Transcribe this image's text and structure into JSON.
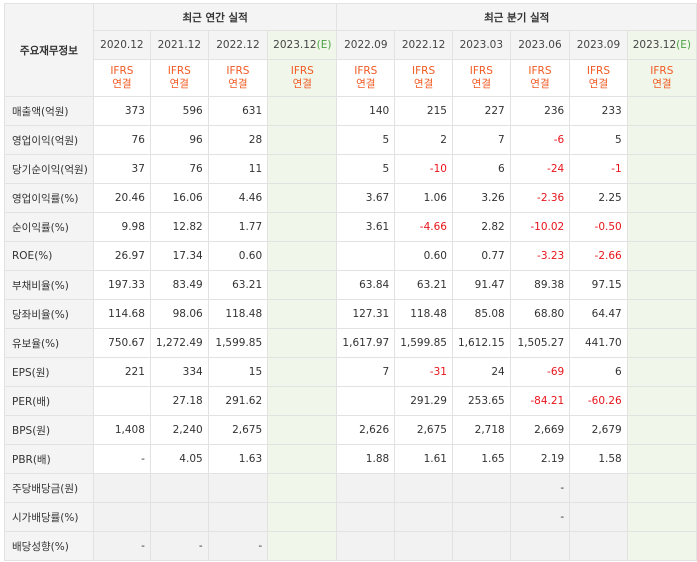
{
  "table": {
    "row_header_label": "주요재무정보",
    "groups": {
      "annual": "최근 연간 실적",
      "quarterly": "최근 분기 실적"
    },
    "periods": [
      "2020.12",
      "2021.12",
      "2022.12",
      "2023.12(E)",
      "2022.09",
      "2022.12",
      "2023.03",
      "2023.06",
      "2023.09",
      "2023.12(E)"
    ],
    "standard_line1": "IFRS",
    "standard_line2": "연결",
    "rows": [
      {
        "label": "매출액(억원)",
        "values": [
          "373",
          "596",
          "631",
          "",
          "140",
          "215",
          "227",
          "236",
          "233",
          ""
        ]
      },
      {
        "label": "영업이익(억원)",
        "values": [
          "76",
          "96",
          "28",
          "",
          "5",
          "2",
          "7",
          "-6",
          "5",
          ""
        ]
      },
      {
        "label": "당기순이익(억원)",
        "values": [
          "37",
          "76",
          "11",
          "",
          "5",
          "-10",
          "6",
          "-24",
          "-1",
          ""
        ]
      },
      {
        "label": "영업이익률(%)",
        "values": [
          "20.46",
          "16.06",
          "4.46",
          "",
          "3.67",
          "1.06",
          "3.26",
          "-2.36",
          "2.25",
          ""
        ]
      },
      {
        "label": "순이익률(%)",
        "values": [
          "9.98",
          "12.82",
          "1.77",
          "",
          "3.61",
          "-4.66",
          "2.82",
          "-10.02",
          "-0.50",
          ""
        ]
      },
      {
        "label": "ROE(%)",
        "values": [
          "26.97",
          "17.34",
          "0.60",
          "",
          "",
          "0.60",
          "0.77",
          "-3.23",
          "-2.66",
          ""
        ]
      },
      {
        "label": "부채비율(%)",
        "values": [
          "197.33",
          "83.49",
          "63.21",
          "",
          "63.84",
          "63.21",
          "91.47",
          "89.38",
          "97.15",
          ""
        ]
      },
      {
        "label": "당좌비율(%)",
        "values": [
          "114.68",
          "98.06",
          "118.48",
          "",
          "127.31",
          "118.48",
          "85.08",
          "68.80",
          "64.47",
          ""
        ]
      },
      {
        "label": "유보율(%)",
        "values": [
          "750.67",
          "1,272.49",
          "1,599.85",
          "",
          "1,617.97",
          "1,599.85",
          "1,612.15",
          "1,505.27",
          "441.70",
          ""
        ]
      },
      {
        "label": "EPS(원)",
        "values": [
          "221",
          "334",
          "15",
          "",
          "7",
          "-31",
          "24",
          "-69",
          "6",
          ""
        ]
      },
      {
        "label": "PER(배)",
        "values": [
          "",
          "27.18",
          "291.62",
          "",
          "",
          "291.29",
          "253.65",
          "-84.21",
          "-60.26",
          ""
        ]
      },
      {
        "label": "BPS(원)",
        "values": [
          "1,408",
          "2,240",
          "2,675",
          "",
          "2,626",
          "2,675",
          "2,718",
          "2,669",
          "2,679",
          ""
        ]
      },
      {
        "label": "PBR(배)",
        "values": [
          "-",
          "4.05",
          "1.63",
          "",
          "1.88",
          "1.61",
          "1.65",
          "2.19",
          "1.58",
          ""
        ]
      },
      {
        "label": "주당배당금(원)",
        "values": [
          "",
          "",
          "",
          "",
          "",
          "",
          "",
          "-",
          "",
          ""
        ]
      },
      {
        "label": "시가배당률(%)",
        "values": [
          "",
          "",
          "",
          "",
          "",
          "",
          "",
          "-",
          "",
          ""
        ]
      },
      {
        "label": "배당성향(%)",
        "values": [
          "-",
          "-",
          "-",
          "",
          "",
          "",
          "",
          "",
          "",
          ""
        ]
      }
    ]
  }
}
